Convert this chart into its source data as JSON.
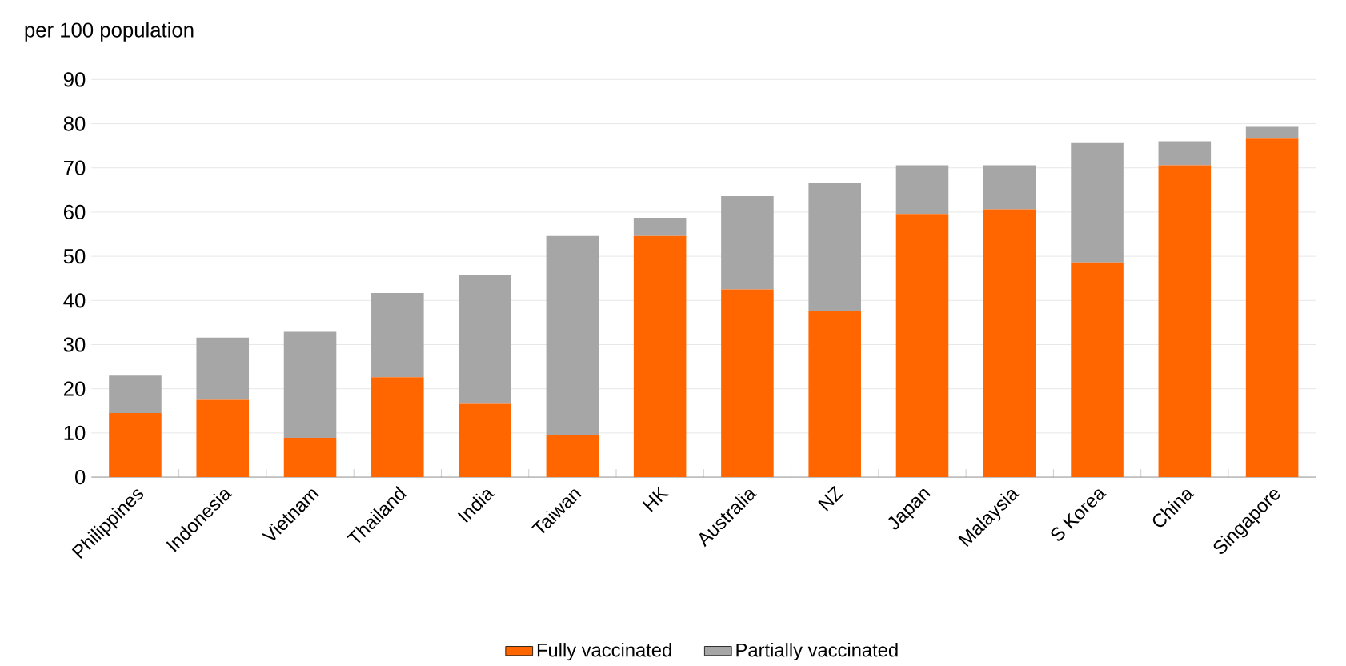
{
  "chart_data": {
    "type": "bar",
    "stacked": true,
    "ylabel": "per 100 population",
    "categories": [
      "Philippines",
      "Indonesia",
      "Vietnam",
      "Thailand",
      "India",
      "Taiwan",
      "HK",
      "Australia",
      "NZ",
      "Japan",
      "Malaysia",
      "S Korea",
      "China",
      "Singapore"
    ],
    "series": [
      {
        "name": "Fully vaccinated",
        "color": "#ff6600",
        "values": [
          14.5,
          17.5,
          8.9,
          22.6,
          16.6,
          9.5,
          54.6,
          42.5,
          37.5,
          59.6,
          60.6,
          48.6,
          70.6,
          76.6
        ]
      },
      {
        "name": "Partially vaccinated",
        "color": "#a6a6a6",
        "values": [
          8.5,
          14.1,
          24,
          19.1,
          29.1,
          45.1,
          4.1,
          21.1,
          29.1,
          11,
          10,
          27,
          5.4,
          2.7
        ]
      }
    ],
    "ylim": [
      0,
      90
    ],
    "yticks": [
      0,
      10,
      20,
      30,
      40,
      50,
      60,
      70,
      80,
      90
    ],
    "grid": "y",
    "legend": "bottom"
  }
}
